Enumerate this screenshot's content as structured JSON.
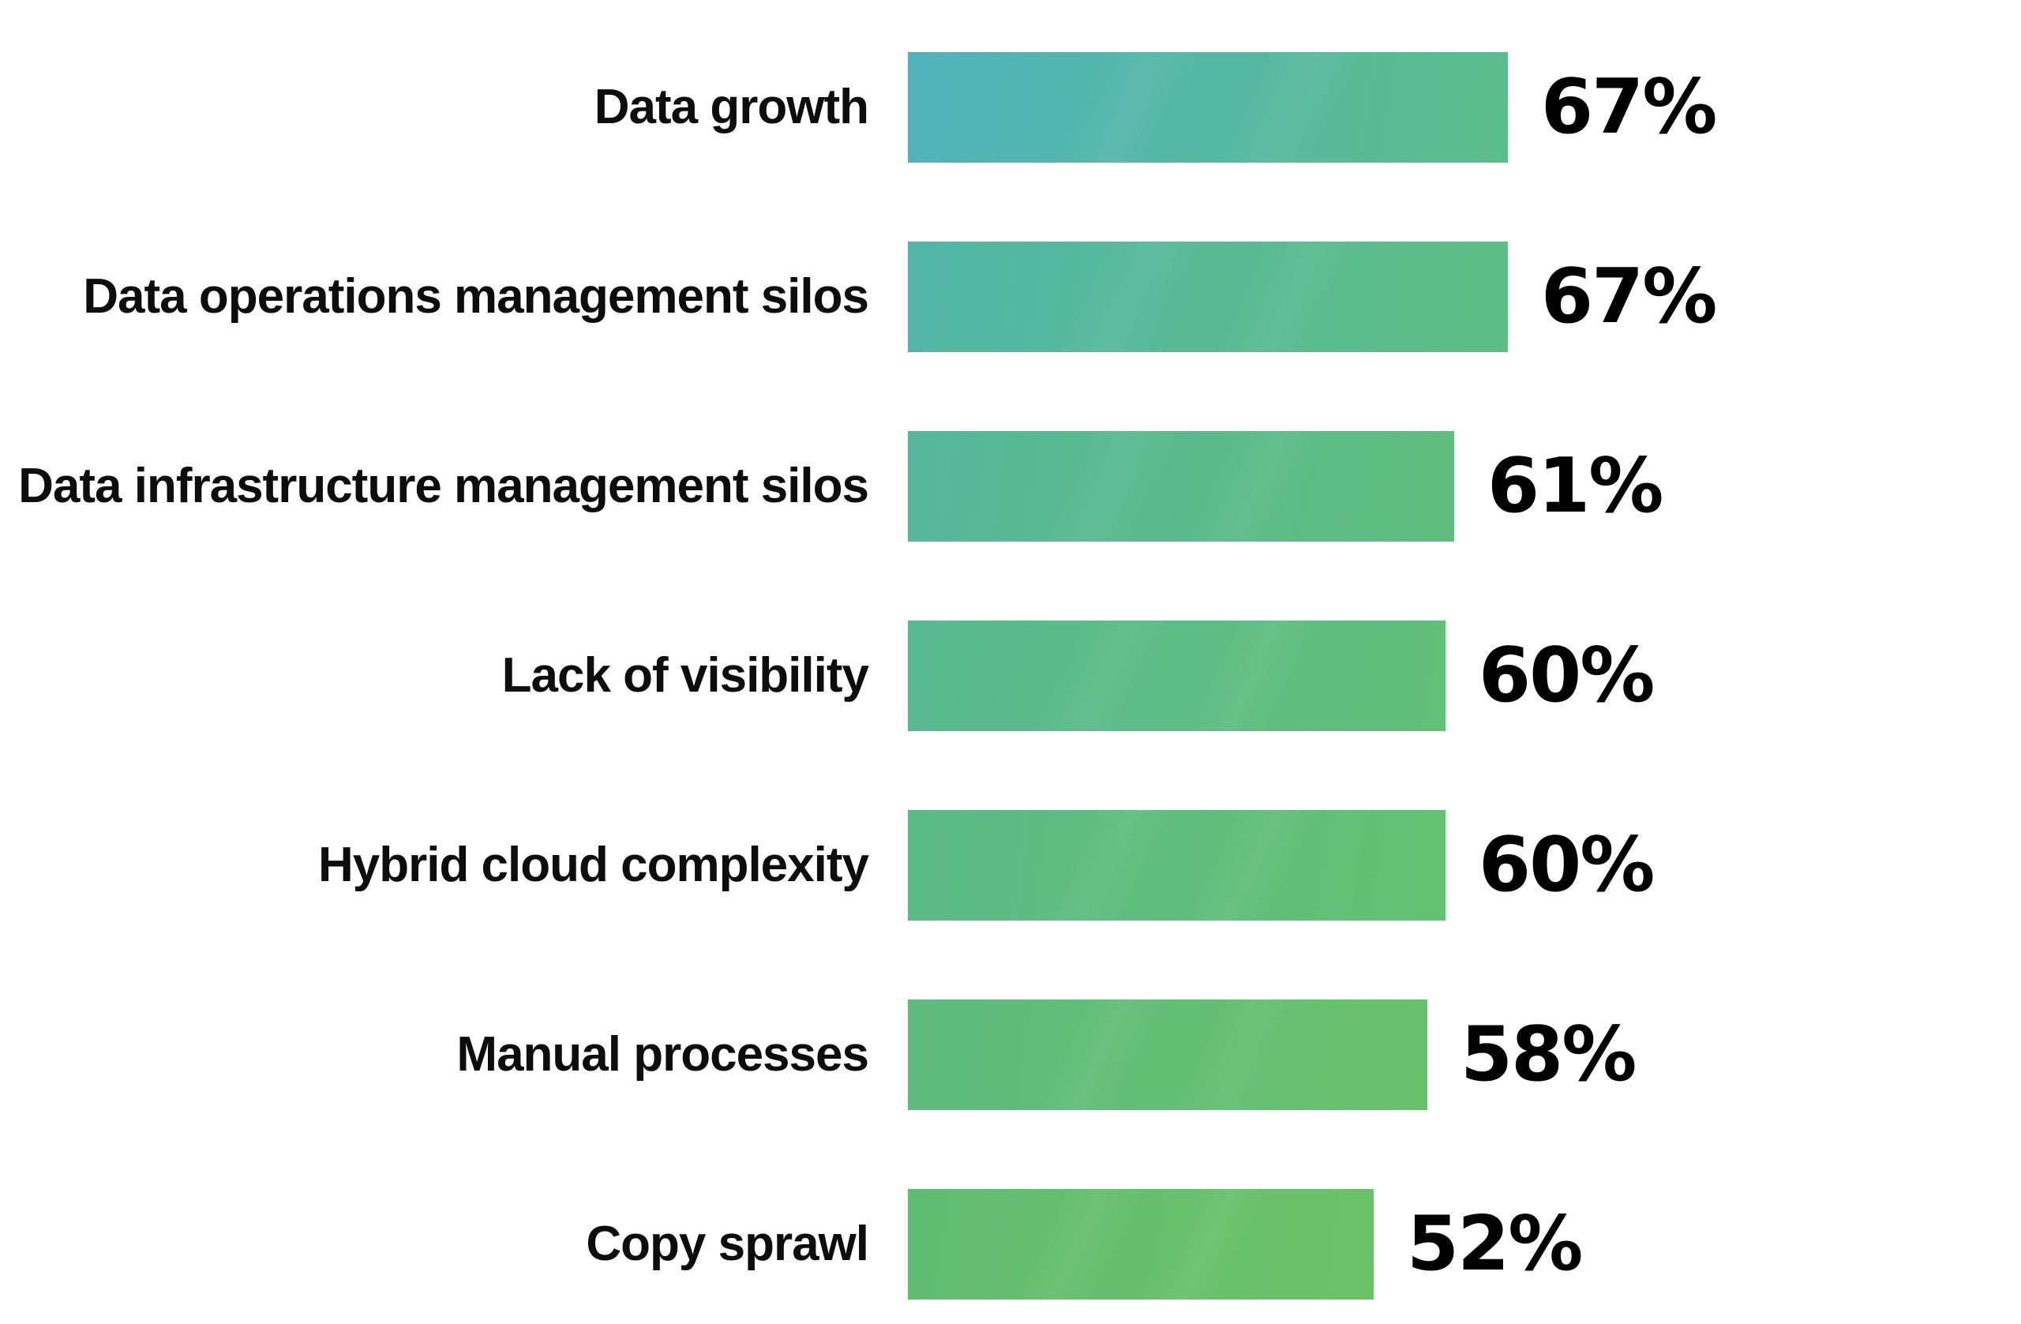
{
  "chart_data": {
    "type": "bar",
    "orientation": "horizontal",
    "title": "",
    "xlabel": "",
    "ylabel": "",
    "categories": [
      "Data growth",
      "Data operations management silos",
      "Data infrastructure management silos",
      "Lack of visibility",
      "Hybrid cloud complexity",
      "Manual processes",
      "Copy sprawl"
    ],
    "values": [
      67,
      67,
      61,
      60,
      60,
      58,
      52
    ],
    "value_labels": [
      "67%",
      "67%",
      "61%",
      "60%",
      "60%",
      "58%",
      "52%"
    ],
    "unit": "%",
    "xlim": [
      0,
      67
    ],
    "grid": false,
    "legend": false,
    "background_color": "#ffffff",
    "label_text_color": "#0d0d0d",
    "value_text_color": "#000000",
    "bar_gradient_start": "#4FB3BB",
    "bar_gradient_end": "#6CC267",
    "row_colors": [
      {
        "left": "#4FB3BB",
        "right": "#5CBD8B"
      },
      {
        "left": "#52B6A8",
        "right": "#5EBE84"
      },
      {
        "left": "#56B79C",
        "right": "#60BE7E"
      },
      {
        "left": "#59B992",
        "right": "#63BF79"
      },
      {
        "left": "#5CBA88",
        "right": "#66C073"
      },
      {
        "left": "#5FBB7E",
        "right": "#69C16D"
      },
      {
        "left": "#62BC74",
        "right": "#6CC267"
      }
    ]
  }
}
